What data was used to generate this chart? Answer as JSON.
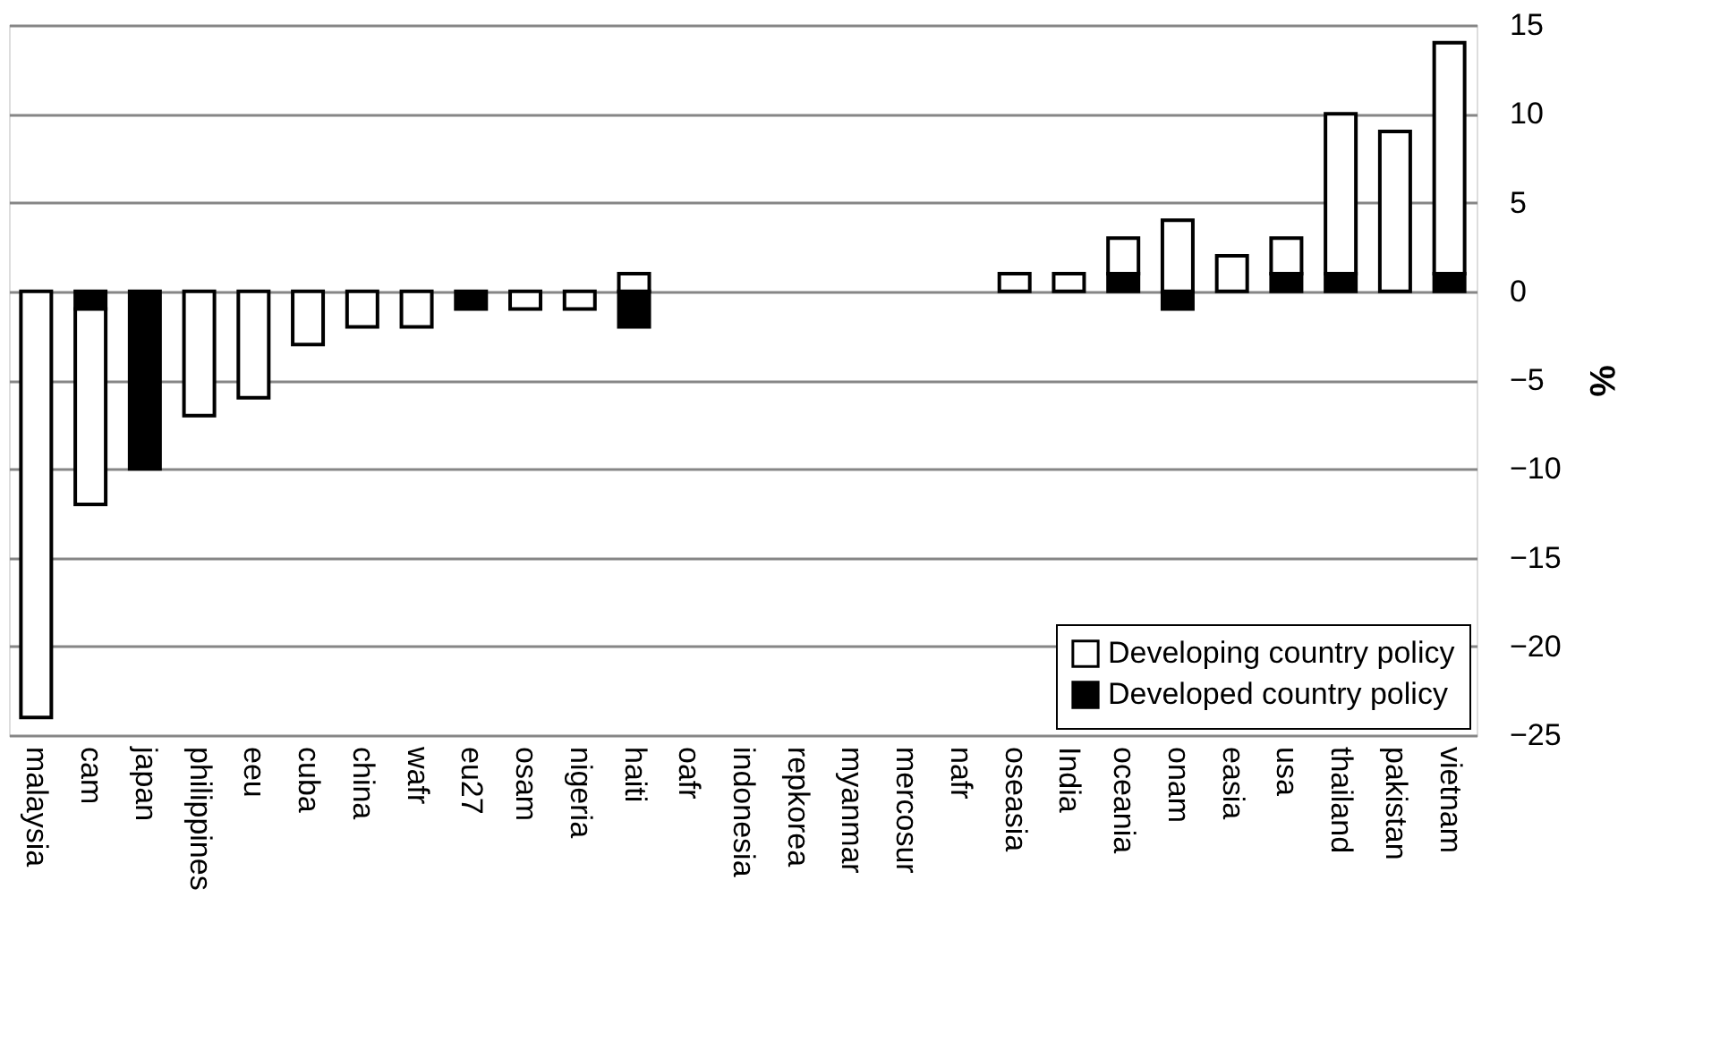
{
  "chart_data": {
    "type": "bar",
    "stacked": true,
    "ylabel": "%",
    "categories": [
      "malaysia",
      "cam",
      "japan",
      "philippines",
      "eeu",
      "cuba",
      "china",
      "wafr",
      "eu27",
      "osam",
      "nigeria",
      "haiti",
      "oafr",
      "indonesia",
      "repkorea",
      "myanmar",
      "mercosur",
      "nafr",
      "oseasia",
      "India",
      "oceania",
      "onam",
      "easia",
      "usa",
      "thailand",
      "pakistan",
      "vietnam"
    ],
    "series": [
      {
        "name": "Developed country policy",
        "color": "#000000",
        "values": [
          null,
          -1,
          -10,
          null,
          null,
          null,
          null,
          null,
          -1,
          null,
          null,
          -2,
          null,
          null,
          null,
          null,
          null,
          null,
          null,
          null,
          1,
          -1,
          null,
          1,
          1,
          null,
          1
        ]
      },
      {
        "name": "Developing country policy",
        "color": "#ffffff",
        "values": [
          -24,
          -11,
          null,
          -7,
          -6,
          -3,
          -2,
          -2,
          null,
          -1,
          -1,
          1,
          null,
          null,
          null,
          null,
          null,
          null,
          1,
          1,
          2,
          4,
          2,
          2,
          9,
          9,
          13
        ]
      }
    ],
    "ylim": [
      -25,
      15
    ],
    "yticks": [
      -25,
      -20,
      -15,
      -10,
      -5,
      0,
      5,
      10,
      15
    ],
    "grid": "y",
    "legend": "bottom right"
  }
}
